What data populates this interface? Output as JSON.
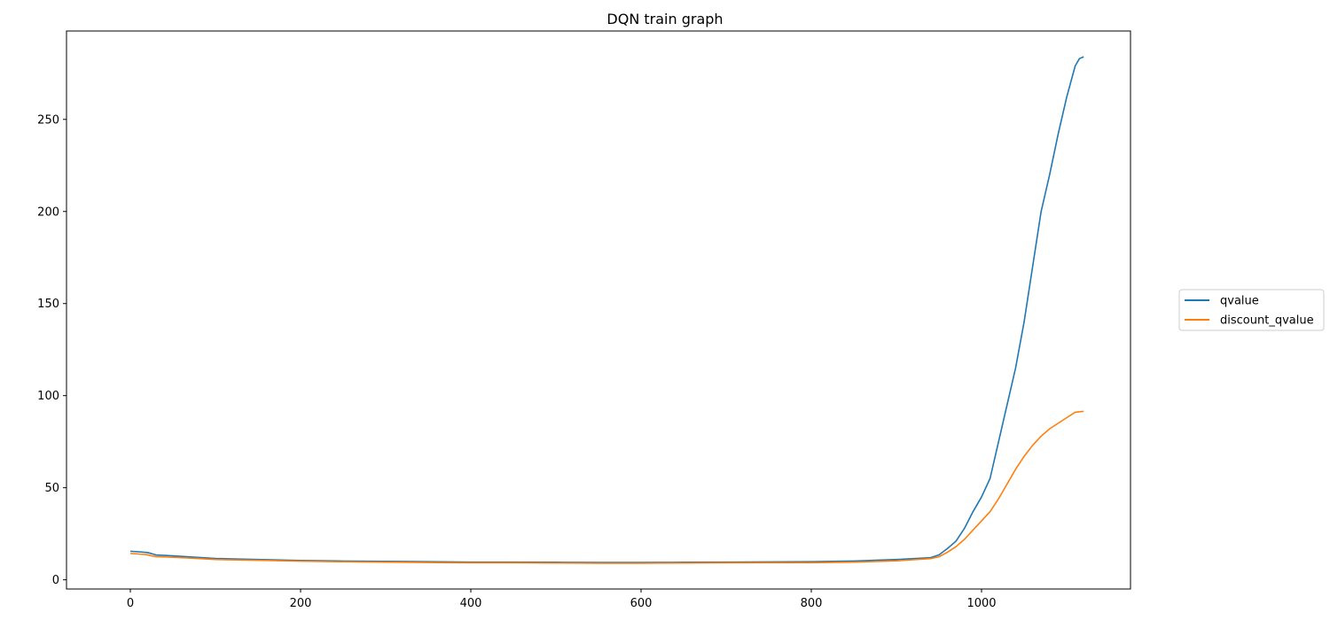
{
  "chart_data": {
    "type": "line",
    "title": "DQN train graph",
    "xlabel": "",
    "ylabel": "",
    "xlim": [
      -75,
      1175
    ],
    "ylim": [
      -5,
      298
    ],
    "x_ticks": [
      0,
      200,
      400,
      600,
      800,
      1000
    ],
    "y_ticks": [
      0,
      50,
      100,
      150,
      200,
      250
    ],
    "grid": false,
    "legend_position": "right, outside plot area",
    "series": [
      {
        "name": "qvalue",
        "color": "#1f77b4",
        "points": [
          [
            0,
            15.5
          ],
          [
            10,
            15.2
          ],
          [
            20,
            14.8
          ],
          [
            25,
            14.2
          ],
          [
            30,
            13.5
          ],
          [
            50,
            13.0
          ],
          [
            75,
            12.3
          ],
          [
            100,
            11.6
          ],
          [
            150,
            11.0
          ],
          [
            200,
            10.5
          ],
          [
            250,
            10.2
          ],
          [
            300,
            10.0
          ],
          [
            350,
            9.8
          ],
          [
            400,
            9.6
          ],
          [
            450,
            9.6
          ],
          [
            500,
            9.5
          ],
          [
            550,
            9.4
          ],
          [
            600,
            9.4
          ],
          [
            650,
            9.5
          ],
          [
            700,
            9.6
          ],
          [
            750,
            9.7
          ],
          [
            800,
            9.8
          ],
          [
            850,
            10.2
          ],
          [
            900,
            11.0
          ],
          [
            940,
            12.0
          ],
          [
            950,
            13.5
          ],
          [
            960,
            17.0
          ],
          [
            970,
            21.0
          ],
          [
            980,
            28.0
          ],
          [
            990,
            37.0
          ],
          [
            1000,
            45.0
          ],
          [
            1010,
            55.0
          ],
          [
            1020,
            75.0
          ],
          [
            1030,
            95.0
          ],
          [
            1040,
            115.0
          ],
          [
            1050,
            140.0
          ],
          [
            1060,
            170.0
          ],
          [
            1070,
            200.0
          ],
          [
            1080,
            220.0
          ],
          [
            1090,
            242.0
          ],
          [
            1100,
            262.0
          ],
          [
            1110,
            279.0
          ],
          [
            1115,
            283.0
          ],
          [
            1120,
            284.0
          ]
        ]
      },
      {
        "name": "discount_qvalue",
        "color": "#ff7f0e",
        "points": [
          [
            0,
            14.3
          ],
          [
            10,
            14.0
          ],
          [
            20,
            13.6
          ],
          [
            25,
            13.0
          ],
          [
            30,
            12.6
          ],
          [
            50,
            12.2
          ],
          [
            75,
            11.7
          ],
          [
            100,
            11.0
          ],
          [
            150,
            10.6
          ],
          [
            200,
            10.1
          ],
          [
            250,
            9.8
          ],
          [
            300,
            9.6
          ],
          [
            350,
            9.4
          ],
          [
            400,
            9.2
          ],
          [
            450,
            9.2
          ],
          [
            500,
            9.1
          ],
          [
            550,
            9.0
          ],
          [
            600,
            9.0
          ],
          [
            650,
            9.1
          ],
          [
            700,
            9.2
          ],
          [
            750,
            9.3
          ],
          [
            800,
            9.3
          ],
          [
            850,
            9.6
          ],
          [
            900,
            10.3
          ],
          [
            940,
            11.5
          ],
          [
            950,
            12.5
          ],
          [
            960,
            15.0
          ],
          [
            970,
            18.0
          ],
          [
            980,
            22.0
          ],
          [
            990,
            27.0
          ],
          [
            1000,
            32.0
          ],
          [
            1010,
            37.0
          ],
          [
            1020,
            44.0
          ],
          [
            1030,
            52.0
          ],
          [
            1040,
            60.0
          ],
          [
            1050,
            67.0
          ],
          [
            1060,
            73.0
          ],
          [
            1070,
            78.0
          ],
          [
            1080,
            82.0
          ],
          [
            1090,
            85.0
          ],
          [
            1100,
            88.0
          ],
          [
            1110,
            91.0
          ],
          [
            1120,
            91.5
          ]
        ]
      }
    ]
  }
}
